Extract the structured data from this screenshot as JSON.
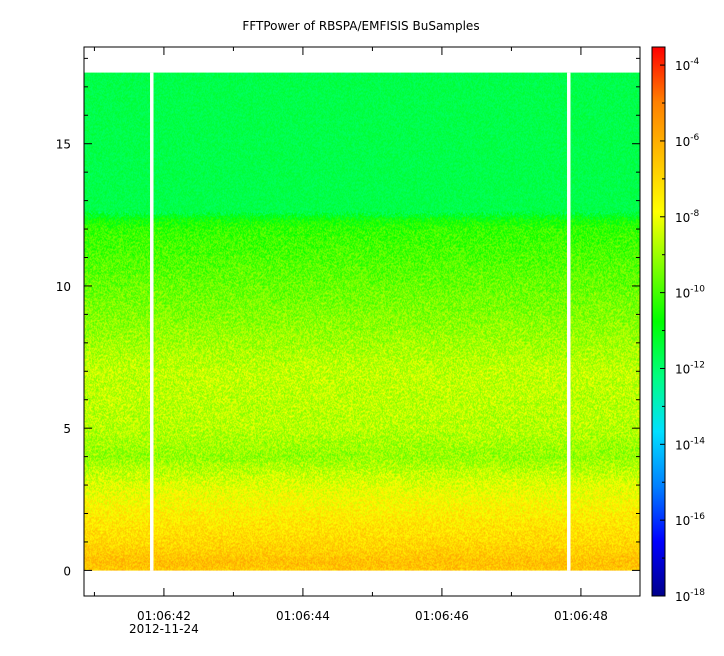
{
  "chart_data": {
    "type": "heatmap",
    "title": "FFTPower of RBSPA/EMFISIS  BuSamples",
    "xlabel": "",
    "ylabel": "",
    "x_ticks": [
      {
        "value": 42,
        "label": "01:06:42",
        "sublabel": "2012-11-24"
      },
      {
        "value": 44,
        "label": "01:06:44"
      },
      {
        "value": 46,
        "label": "01:06:46"
      },
      {
        "value": 48,
        "label": "01:06:48"
      }
    ],
    "x_minor_ticks": [
      41,
      43,
      45,
      47
    ],
    "xlim": [
      40.85,
      48.85
    ],
    "y_ticks": [
      0,
      5,
      10,
      15
    ],
    "ylim": [
      -0.9,
      18.4
    ],
    "y_data_max": 17.5,
    "gaps": [
      {
        "start": 41.8,
        "end": 41.85
      },
      {
        "start": 47.8,
        "end": 47.85
      }
    ],
    "colorbar": {
      "scale": "log",
      "range": [
        1e-18,
        0.0003
      ],
      "ticks": [
        {
          "exponent": -18,
          "base": "10",
          "exp": "-18"
        },
        {
          "exponent": -16,
          "base": "10",
          "exp": "-16"
        },
        {
          "exponent": -14,
          "base": "10",
          "exp": "-14"
        },
        {
          "exponent": -12,
          "base": "10",
          "exp": "-12"
        },
        {
          "exponent": -10,
          "base": "10",
          "exp": "-10"
        },
        {
          "exponent": -8,
          "base": "10",
          "exp": "-8"
        },
        {
          "exponent": -6,
          "base": "10",
          "exp": "-6"
        },
        {
          "exponent": -4,
          "base": "10",
          "exp": "-4"
        }
      ],
      "colormap": [
        "#00008b",
        "#0000ff",
        "#0080ff",
        "#00e0ff",
        "#00ff80",
        "#00ff00",
        "#80ff00",
        "#ffff00",
        "#ffc000",
        "#ff8000",
        "#ff0000"
      ]
    },
    "power_profile": [
      {
        "y": 0.0,
        "log10": -6.6
      },
      {
        "y": 0.3,
        "log10": -6.4
      },
      {
        "y": 0.6,
        "log10": -6.7
      },
      {
        "y": 1.0,
        "log10": -7.0
      },
      {
        "y": 2.0,
        "log10": -7.5
      },
      {
        "y": 3.0,
        "log10": -8.2
      },
      {
        "y": 4.0,
        "log10": -9.1
      },
      {
        "y": 5.0,
        "log10": -8.7
      },
      {
        "y": 7.0,
        "log10": -8.6
      },
      {
        "y": 9.0,
        "log10": -9.3
      },
      {
        "y": 11.0,
        "log10": -9.9
      },
      {
        "y": 12.0,
        "log10": -10.2
      },
      {
        "y": 12.3,
        "log10": -10.6
      },
      {
        "y": 12.6,
        "log10": -11.6
      },
      {
        "y": 17.5,
        "log10": -11.6
      }
    ]
  }
}
